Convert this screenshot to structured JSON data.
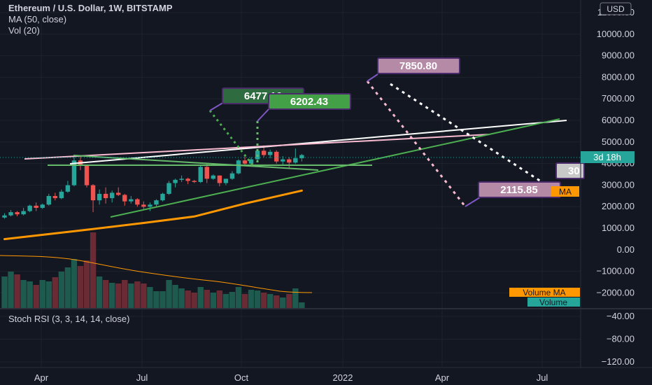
{
  "header": {
    "title": "Ethereum / U.S. Dollar, 1W, BITSTAMP",
    "indicator_ma": "MA (50, close)",
    "indicator_vol": "Vol (20)",
    "stoch_label": "Stoch RSI (3, 3, 14, 14, close)"
  },
  "price_axis": {
    "currency_badge": "USD",
    "ticks": [
      "11000.00",
      "10000.00",
      "9000.00",
      "8000.00",
      "7000.00",
      "6000.00",
      "5000.00",
      "4000.00",
      "3000.00",
      "2000.00",
      "1000.00",
      "0.00",
      "−1000.00",
      "−2000.00"
    ],
    "current_time_label": "3d 18h",
    "ma_tag": "MA",
    "volume_ma_tag": "Volume MA",
    "volume_tag": "Volume",
    "cut_label": "30"
  },
  "stoch_axis": {
    "ticks": [
      "−40.00",
      "−80.00",
      "−120.00"
    ]
  },
  "time_axis": {
    "ticks": [
      "Apr",
      "Jul",
      "Oct",
      "2022",
      "Apr",
      "Jul"
    ]
  },
  "annotations": {
    "target_high": "7850.80",
    "target_mid": "6477.16",
    "target_alt": "6202.43",
    "target_low": "2115.85"
  },
  "colors": {
    "bull": "#26a69a",
    "bear": "#ef5350",
    "ma": "#ff9800",
    "background": "#131722",
    "grid": "#2a2e39"
  },
  "chart_data": {
    "type": "candlestick",
    "symbol": "ETH/USD",
    "interval": "1W",
    "exchange": "BITSTAMP",
    "ylim": [
      -2500,
      11500
    ],
    "candles": [
      {
        "o": 1500,
        "h": 1700,
        "l": 1450,
        "c": 1600
      },
      {
        "o": 1600,
        "h": 1850,
        "l": 1550,
        "c": 1750
      },
      {
        "o": 1750,
        "h": 1800,
        "l": 1560,
        "c": 1650
      },
      {
        "o": 1650,
        "h": 1950,
        "l": 1600,
        "c": 1800
      },
      {
        "o": 1800,
        "h": 2100,
        "l": 1750,
        "c": 2050
      },
      {
        "o": 2050,
        "h": 2200,
        "l": 1800,
        "c": 1950
      },
      {
        "o": 1950,
        "h": 2150,
        "l": 1900,
        "c": 2100
      },
      {
        "o": 2100,
        "h": 2600,
        "l": 2050,
        "c": 2500
      },
      {
        "o": 2500,
        "h": 2650,
        "l": 2300,
        "c": 2400
      },
      {
        "o": 2400,
        "h": 2800,
        "l": 2350,
        "c": 2700
      },
      {
        "o": 2700,
        "h": 3200,
        "l": 2650,
        "c": 3000
      },
      {
        "o": 3000,
        "h": 4300,
        "l": 2950,
        "c": 4150
      },
      {
        "o": 4150,
        "h": 4380,
        "l": 3700,
        "c": 3900
      },
      {
        "o": 3900,
        "h": 3950,
        "l": 2900,
        "c": 3000
      },
      {
        "o": 3000,
        "h": 3050,
        "l": 1750,
        "c": 2300
      },
      {
        "o": 2300,
        "h": 2800,
        "l": 2100,
        "c": 2600
      },
      {
        "o": 2600,
        "h": 2900,
        "l": 2150,
        "c": 2400
      },
      {
        "o": 2400,
        "h": 2750,
        "l": 2200,
        "c": 2650
      },
      {
        "o": 2650,
        "h": 2900,
        "l": 2500,
        "c": 2550
      },
      {
        "o": 2550,
        "h": 2600,
        "l": 2050,
        "c": 2250
      },
      {
        "o": 2250,
        "h": 2500,
        "l": 2150,
        "c": 2350
      },
      {
        "o": 2350,
        "h": 2400,
        "l": 2000,
        "c": 2100
      },
      {
        "o": 2100,
        "h": 2250,
        "l": 1900,
        "c": 2000
      },
      {
        "o": 2000,
        "h": 2200,
        "l": 1800,
        "c": 2100
      },
      {
        "o": 2100,
        "h": 2350,
        "l": 2000,
        "c": 2300
      },
      {
        "o": 2300,
        "h": 2650,
        "l": 2250,
        "c": 2600
      },
      {
        "o": 2600,
        "h": 3200,
        "l": 2550,
        "c": 3100
      },
      {
        "o": 3100,
        "h": 3300,
        "l": 2900,
        "c": 3250
      },
      {
        "o": 3250,
        "h": 3450,
        "l": 3150,
        "c": 3300
      },
      {
        "o": 3300,
        "h": 3350,
        "l": 3050,
        "c": 3200
      },
      {
        "o": 3200,
        "h": 3250,
        "l": 3100,
        "c": 3150
      },
      {
        "o": 3150,
        "h": 3900,
        "l": 3100,
        "c": 3850
      },
      {
        "o": 3850,
        "h": 4000,
        "l": 3100,
        "c": 3300
      },
      {
        "o": 3300,
        "h": 3500,
        "l": 3250,
        "c": 3450
      },
      {
        "o": 3450,
        "h": 3450,
        "l": 2950,
        "c": 3100
      },
      {
        "o": 3100,
        "h": 3300,
        "l": 3000,
        "c": 3300
      },
      {
        "o": 3300,
        "h": 3650,
        "l": 3250,
        "c": 3550
      },
      {
        "o": 3550,
        "h": 4200,
        "l": 3500,
        "c": 4150
      },
      {
        "o": 4150,
        "h": 4400,
        "l": 3900,
        "c": 4000
      },
      {
        "o": 4000,
        "h": 4300,
        "l": 3950,
        "c": 4200
      },
      {
        "o": 4200,
        "h": 4650,
        "l": 4150,
        "c": 4600
      },
      {
        "o": 4600,
        "h": 4850,
        "l": 4300,
        "c": 4400
      },
      {
        "o": 4400,
        "h": 4650,
        "l": 4250,
        "c": 4550
      },
      {
        "o": 4550,
        "h": 4620,
        "l": 4000,
        "c": 4100
      },
      {
        "o": 4100,
        "h": 4350,
        "l": 3900,
        "c": 4200
      },
      {
        "o": 4200,
        "h": 4300,
        "l": 3800,
        "c": 4050
      },
      {
        "o": 4050,
        "h": 4700,
        "l": 4000,
        "c": 4250
      },
      {
        "o": 4250,
        "h": 4450,
        "l": 4100,
        "c": 4400
      }
    ],
    "moving_average": [
      {
        "week": 0,
        "value": 500
      },
      {
        "week": 12,
        "value": 900
      },
      {
        "week": 22,
        "value": 1250
      },
      {
        "week": 30,
        "value": 1550
      },
      {
        "week": 38,
        "value": 2150
      },
      {
        "week": 47,
        "value": 2750
      }
    ]
  }
}
